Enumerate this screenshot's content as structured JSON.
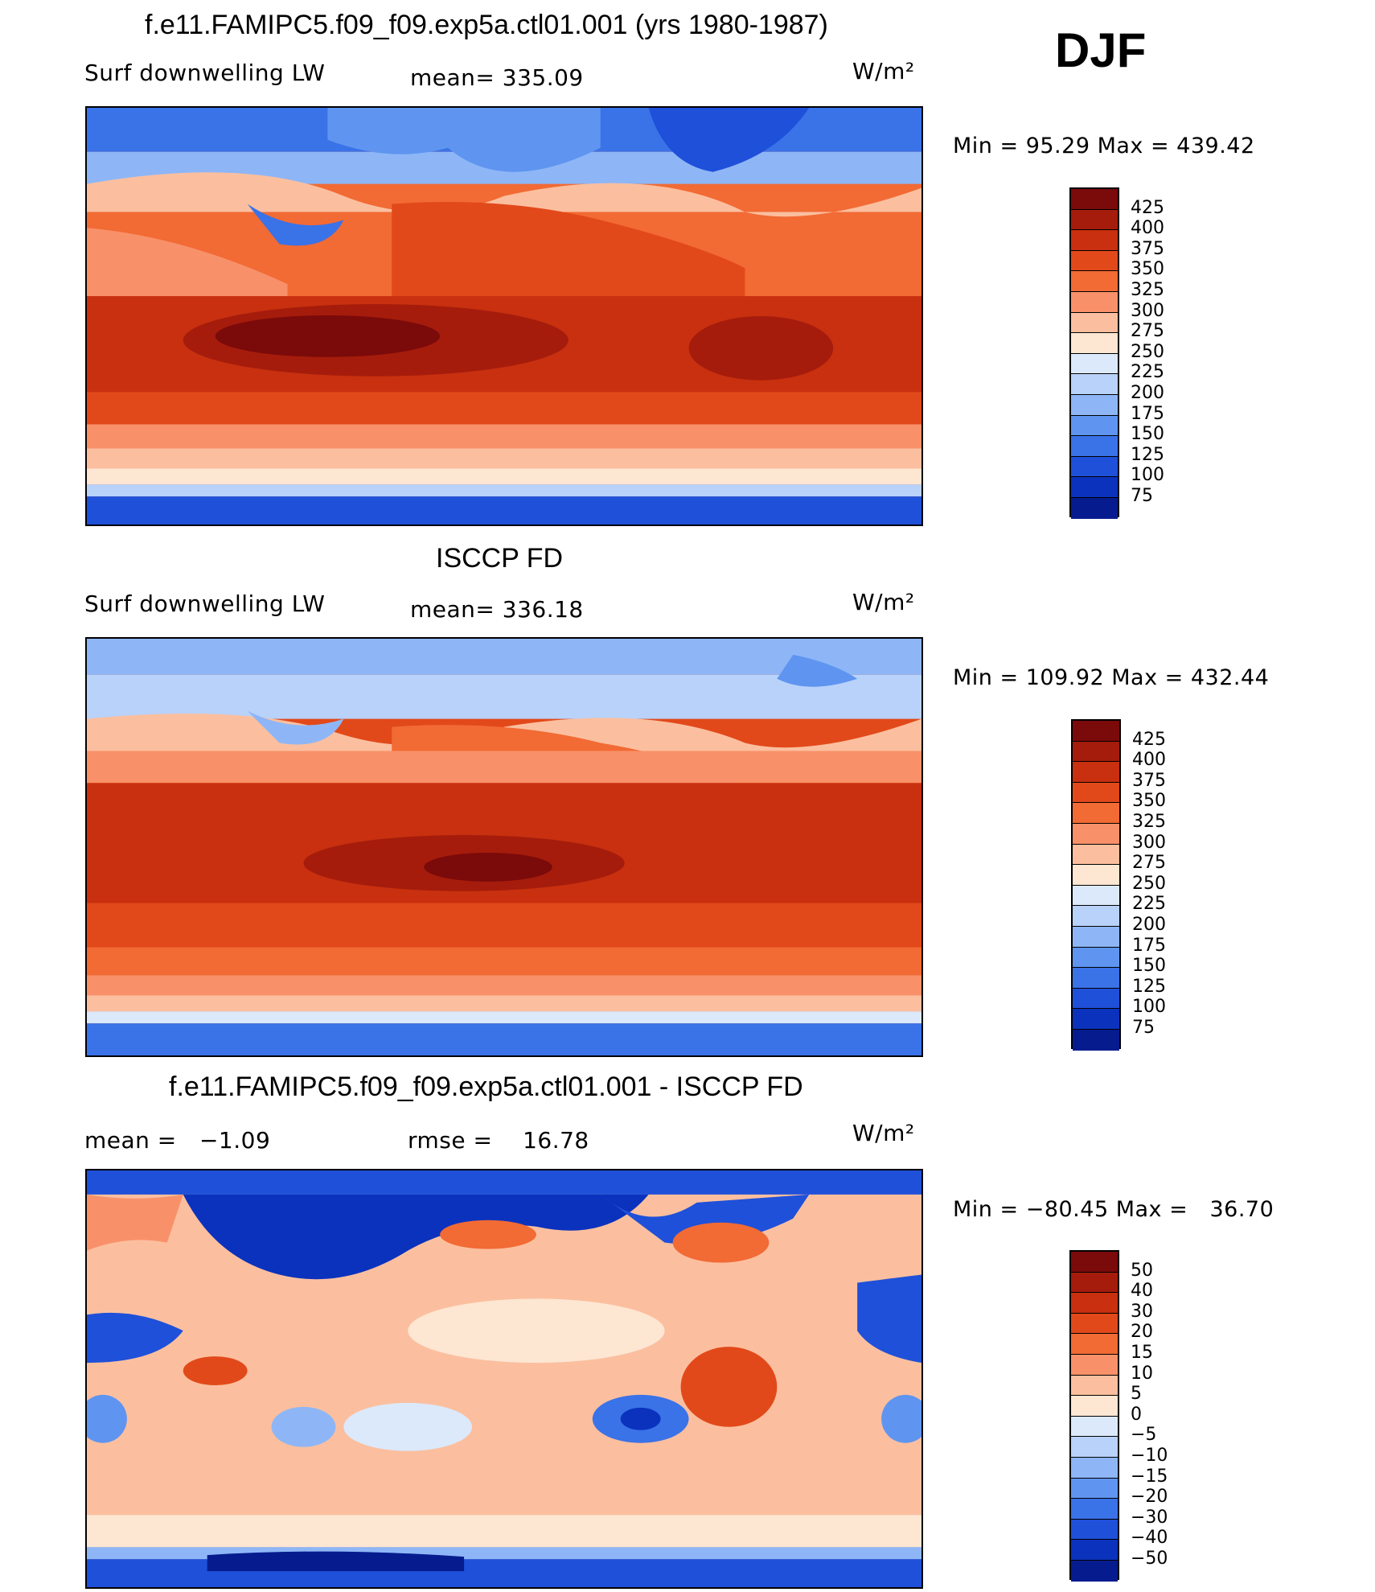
{
  "season": "DJF",
  "panels": [
    {
      "title": "f.e11.FAMIPC5.f09_f09.exp5a.ctl01.001 (yrs 1980-1987)",
      "left_label": "Surf downwelling LW",
      "center_label": "mean= 335.09",
      "units": "W/m²",
      "minmax": "Min =   95.29 Max = 439.42",
      "colorbar_labels": [
        "425",
        "400",
        "375",
        "350",
        "325",
        "300",
        "275",
        "250",
        "225",
        "200",
        "175",
        "150",
        "125",
        "100",
        "75"
      ]
    },
    {
      "title": "ISCCP FD",
      "left_label": "Surf downwelling LW",
      "center_label": "mean= 336.18",
      "units": "W/m²",
      "minmax": "Min = 109.92 Max = 432.44",
      "colorbar_labels": [
        "425",
        "400",
        "375",
        "350",
        "325",
        "300",
        "275",
        "250",
        "225",
        "200",
        "175",
        "150",
        "125",
        "100",
        "75"
      ]
    },
    {
      "title": "f.e11.FAMIPC5.f09_f09.exp5a.ctl01.001 - ISCCP FD",
      "left_label": "mean =   −1.09",
      "center_label": "rmse =    16.78",
      "units": "W/m²",
      "minmax": "Min = −80.45 Max =   36.70",
      "colorbar_labels": [
        "50",
        "40",
        "30",
        "20",
        "15",
        "10",
        "5",
        "0",
        "−5",
        "−10",
        "−15",
        "−20",
        "−30",
        "−40",
        "−50"
      ]
    }
  ],
  "colors": {
    "palette": [
      "#7b0a0a",
      "#a51c0c",
      "#c8300f",
      "#e2491a",
      "#f26a34",
      "#f8916a",
      "#fbbf9f",
      "#fde6d2",
      "#dce9fb",
      "#b8d2fa",
      "#8eb6f6",
      "#5f95f0",
      "#3a72e8",
      "#1f50d9",
      "#0b32bd",
      "#061c8e"
    ],
    "land_outline": "#000000"
  }
}
